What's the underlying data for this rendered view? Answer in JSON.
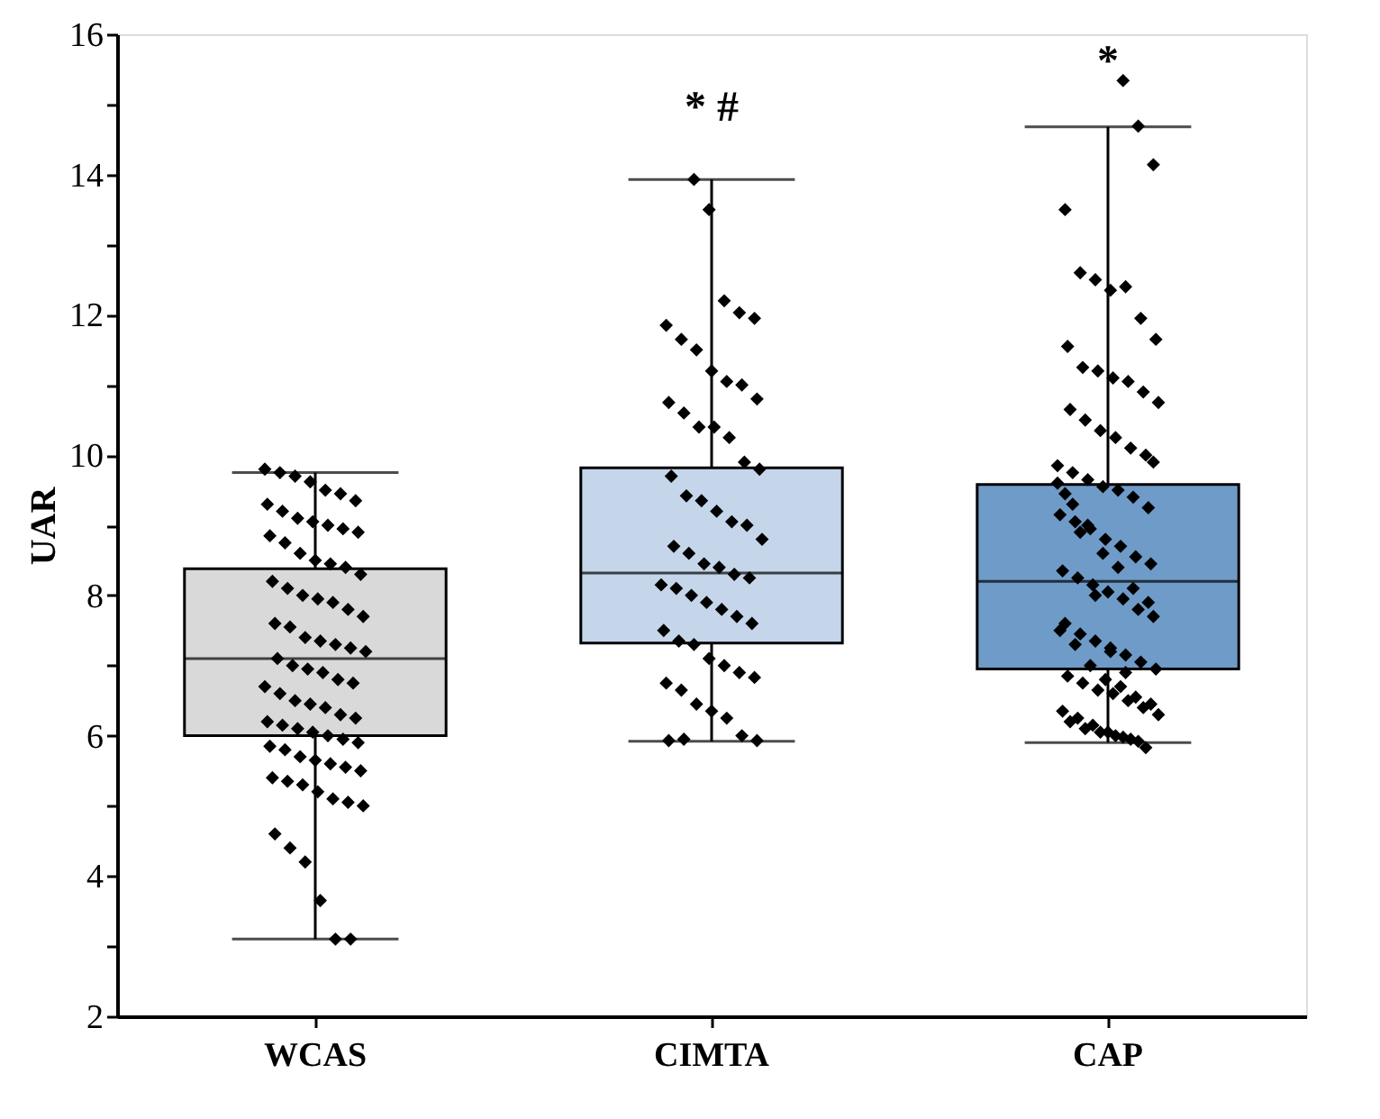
{
  "chart_data": {
    "type": "box",
    "ylabel": "UAR",
    "categories": [
      "WCAS",
      "CIMTA",
      "CAP"
    ],
    "colors": [
      "#d9d9d9",
      "#c5d6ea",
      "#6e9bc8"
    ],
    "boxes": [
      {
        "low": 3.1,
        "q1": 6.0,
        "median": 7.1,
        "q3": 8.38,
        "high": 9.75
      },
      {
        "low": 5.92,
        "q1": 7.32,
        "median": 8.32,
        "q3": 9.82,
        "high": 13.93
      },
      {
        "low": 5.9,
        "q1": 6.95,
        "median": 8.2,
        "q3": 9.58,
        "high": 14.68
      }
    ],
    "series": [
      {
        "type": "scatter",
        "color": "#000000",
        "marker": "diamond",
        "x": [
          "WCAS",
          "WCAS",
          "WCAS",
          "WCAS",
          "WCAS",
          "WCAS",
          "WCAS",
          "WCAS",
          "WCAS",
          "WCAS",
          "WCAS",
          "WCAS",
          "WCAS",
          "WCAS",
          "WCAS",
          "WCAS",
          "WCAS",
          "WCAS",
          "WCAS",
          "WCAS",
          "WCAS",
          "WCAS",
          "WCAS",
          "WCAS",
          "WCAS",
          "WCAS",
          "WCAS",
          "WCAS",
          "WCAS",
          "WCAS",
          "WCAS",
          "WCAS",
          "WCAS",
          "WCAS",
          "WCAS",
          "WCAS",
          "WCAS",
          "WCAS",
          "WCAS",
          "WCAS",
          "WCAS",
          "WCAS",
          "WCAS",
          "WCAS",
          "WCAS",
          "WCAS",
          "WCAS",
          "WCAS",
          "WCAS",
          "WCAS",
          "WCAS",
          "WCAS",
          "WCAS",
          "WCAS",
          "WCAS",
          "WCAS",
          "WCAS",
          "WCAS",
          "WCAS",
          "WCAS",
          "WCAS",
          "WCAS",
          "WCAS",
          "WCAS",
          "WCAS",
          "WCAS",
          "WCAS",
          "WCAS",
          "WCAS",
          "WCAS",
          "WCAS",
          "WCAS",
          "WCAS",
          "WCAS",
          "WCAS"
        ],
        "values": [
          9.8,
          9.75,
          9.7,
          9.62,
          9.5,
          9.45,
          9.35,
          9.3,
          9.2,
          9.1,
          9.05,
          9.0,
          8.95,
          8.9,
          8.85,
          8.75,
          8.6,
          8.5,
          8.45,
          8.4,
          8.3,
          8.2,
          8.1,
          8.0,
          7.95,
          7.9,
          7.8,
          7.7,
          7.6,
          7.55,
          7.4,
          7.35,
          7.3,
          7.25,
          7.2,
          7.1,
          7.0,
          6.95,
          6.9,
          6.8,
          6.75,
          6.7,
          6.6,
          6.5,
          6.45,
          6.4,
          6.3,
          6.25,
          6.2,
          6.15,
          6.1,
          6.05,
          6.0,
          5.95,
          5.9,
          5.85,
          5.8,
          5.7,
          5.65,
          5.6,
          5.55,
          5.5,
          5.4,
          5.35,
          5.3,
          5.2,
          5.1,
          5.05,
          5.0,
          4.6,
          4.4,
          4.2,
          3.65,
          3.1,
          3.1
        ]
      },
      {
        "type": "scatter",
        "color": "#000000",
        "marker": "diamond",
        "x": [
          "CIMTA",
          "CIMTA",
          "CIMTA",
          "CIMTA",
          "CIMTA",
          "CIMTA",
          "CIMTA",
          "CIMTA",
          "CIMTA",
          "CIMTA",
          "CIMTA",
          "CIMTA",
          "CIMTA",
          "CIMTA",
          "CIMTA",
          "CIMTA",
          "CIMTA",
          "CIMTA",
          "CIMTA",
          "CIMTA",
          "CIMTA",
          "CIMTA",
          "CIMTA",
          "CIMTA",
          "CIMTA",
          "CIMTA",
          "CIMTA",
          "CIMTA",
          "CIMTA",
          "CIMTA",
          "CIMTA",
          "CIMTA",
          "CIMTA",
          "CIMTA",
          "CIMTA",
          "CIMTA",
          "CIMTA",
          "CIMTA",
          "CIMTA",
          "CIMTA",
          "CIMTA",
          "CIMTA",
          "CIMTA",
          "CIMTA",
          "CIMTA",
          "CIMTA",
          "CIMTA",
          "CIMTA",
          "CIMTA",
          "CIMTA",
          "CIMTA",
          "CIMTA",
          "CIMTA",
          "CIMTA",
          "CIMTA"
        ],
        "values": [
          13.93,
          13.5,
          12.2,
          12.03,
          11.95,
          11.85,
          11.65,
          11.5,
          11.2,
          11.05,
          11.0,
          10.8,
          10.75,
          10.6,
          10.4,
          10.4,
          10.25,
          9.9,
          9.8,
          9.7,
          9.42,
          9.35,
          9.2,
          9.05,
          9.0,
          8.8,
          8.7,
          8.6,
          8.45,
          8.4,
          8.3,
          8.25,
          8.15,
          8.1,
          8.0,
          7.9,
          7.8,
          7.7,
          7.6,
          7.5,
          7.35,
          7.3,
          7.1,
          7.0,
          6.9,
          6.83,
          6.75,
          6.65,
          6.45,
          6.35,
          6.25,
          6.0,
          5.93,
          5.93,
          5.95
        ]
      },
      {
        "type": "scatter",
        "color": "#000000",
        "marker": "diamond",
        "x": [
          "CAP",
          "CAP",
          "CAP",
          "CAP",
          "CAP",
          "CAP",
          "CAP",
          "CAP",
          "CAP",
          "CAP",
          "CAP",
          "CAP",
          "CAP",
          "CAP",
          "CAP",
          "CAP",
          "CAP",
          "CAP",
          "CAP",
          "CAP",
          "CAP",
          "CAP",
          "CAP",
          "CAP",
          "CAP",
          "CAP",
          "CAP",
          "CAP",
          "CAP",
          "CAP",
          "CAP",
          "CAP",
          "CAP",
          "CAP",
          "CAP",
          "CAP",
          "CAP",
          "CAP",
          "CAP",
          "CAP",
          "CAP",
          "CAP",
          "CAP",
          "CAP",
          "CAP",
          "CAP",
          "CAP",
          "CAP",
          "CAP",
          "CAP",
          "CAP",
          "CAP",
          "CAP",
          "CAP",
          "CAP",
          "CAP",
          "CAP",
          "CAP",
          "CAP",
          "CAP",
          "CAP",
          "CAP",
          "CAP",
          "CAP",
          "CAP",
          "CAP",
          "CAP",
          "CAP",
          "CAP",
          "CAP",
          "CAP",
          "CAP",
          "CAP",
          "CAP",
          "CAP",
          "CAP",
          "CAP",
          "CAP",
          "CAP",
          "CAP",
          "CAP",
          "CAP",
          "CAP",
          "CAP",
          "CAP",
          "CAP",
          "CAP",
          "CAP",
          "CAP",
          "CAP"
        ],
        "values": [
          15.34,
          14.69,
          14.14,
          13.5,
          12.6,
          12.5,
          12.35,
          12.4,
          11.95,
          11.65,
          11.55,
          11.25,
          11.2,
          11.1,
          11.05,
          10.9,
          10.75,
          10.65,
          10.5,
          10.35,
          10.25,
          10.1,
          10.0,
          9.85,
          9.75,
          9.65,
          9.55,
          9.5,
          9.4,
          9.25,
          9.15,
          9.05,
          8.95,
          8.8,
          8.7,
          8.55,
          8.45,
          8.35,
          8.25,
          8.15,
          8.05,
          7.95,
          7.8,
          7.7,
          7.6,
          7.45,
          7.35,
          7.25,
          7.15,
          7.05,
          6.95,
          6.85,
          6.75,
          6.65,
          6.6,
          6.5,
          6.4,
          6.3,
          6.2,
          6.1,
          6.05,
          6.0,
          5.95,
          5.83,
          9.6,
          9.3,
          9.0,
          8.6,
          8.4,
          8.1,
          7.9,
          7.5,
          7.3,
          7.0,
          6.8,
          6.7,
          6.55,
          6.45,
          6.35,
          6.25,
          6.15,
          6.05,
          5.98,
          5.92,
          9.9,
          9.45,
          8.9,
          8.0,
          7.2,
          6.9
        ]
      }
    ],
    "ylim": [
      2,
      16
    ],
    "yticks": [
      2,
      {
        "value": 3,
        "label": null
      },
      4,
      {
        "value": 5,
        "label": null
      },
      6,
      {
        "value": 7,
        "label": null
      },
      8,
      {
        "value": 9,
        "label": null
      },
      10,
      {
        "value": 11,
        "label": null
      },
      12,
      {
        "value": 13,
        "label": null
      },
      14,
      {
        "value": 15,
        "label": null
      },
      16
    ],
    "annotations": [
      "* #",
      "*"
    ]
  }
}
